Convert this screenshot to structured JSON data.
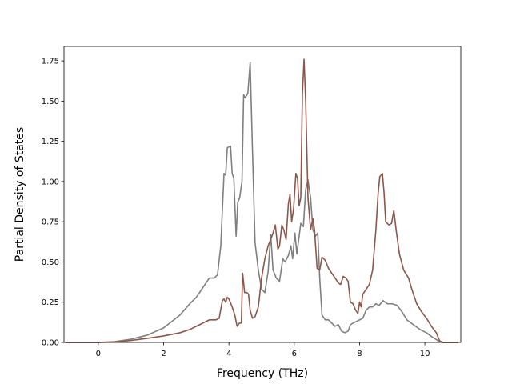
{
  "chart_data": {
    "type": "line",
    "title": "",
    "xlabel": "Frequency (THz)",
    "ylabel": "Partial Density of States",
    "xlim": [
      -1.05,
      11.1
    ],
    "ylim": [
      0,
      1.84
    ],
    "xticks": [
      0,
      2,
      4,
      6,
      8,
      10
    ],
    "yticks": [
      0.0,
      0.25,
      0.5,
      0.75,
      1.0,
      1.25,
      1.5,
      1.75
    ],
    "ytick_labels": [
      "0.00",
      "0.25",
      "0.50",
      "0.75",
      "1.00",
      "1.25",
      "1.50",
      "1.75"
    ],
    "grid": false,
    "legend": "none",
    "series": [
      {
        "color": "#7f7f7f",
        "points": [
          [
            -1.0,
            0
          ],
          [
            0,
            0
          ],
          [
            0.5,
            0.005
          ],
          [
            1.0,
            0.02
          ],
          [
            1.5,
            0.045
          ],
          [
            2.0,
            0.09
          ],
          [
            2.5,
            0.17
          ],
          [
            2.8,
            0.24
          ],
          [
            3.0,
            0.28
          ],
          [
            3.2,
            0.34
          ],
          [
            3.3,
            0.37
          ],
          [
            3.4,
            0.4
          ],
          [
            3.55,
            0.4
          ],
          [
            3.65,
            0.42
          ],
          [
            3.75,
            0.6
          ],
          [
            3.85,
            1.05
          ],
          [
            3.9,
            1.04
          ],
          [
            3.95,
            1.21
          ],
          [
            4.05,
            1.22
          ],
          [
            4.1,
            1.05
          ],
          [
            4.15,
            1.02
          ],
          [
            4.22,
            0.66
          ],
          [
            4.27,
            0.87
          ],
          [
            4.33,
            0.9
          ],
          [
            4.4,
            1.0
          ],
          [
            4.45,
            1.54
          ],
          [
            4.5,
            1.52
          ],
          [
            4.58,
            1.55
          ],
          [
            4.65,
            1.74
          ],
          [
            4.72,
            1.2
          ],
          [
            4.8,
            0.62
          ],
          [
            4.9,
            0.45
          ],
          [
            5.0,
            0.33
          ],
          [
            5.1,
            0.31
          ],
          [
            5.2,
            0.44
          ],
          [
            5.28,
            0.67
          ],
          [
            5.35,
            0.45
          ],
          [
            5.45,
            0.4
          ],
          [
            5.55,
            0.38
          ],
          [
            5.65,
            0.52
          ],
          [
            5.72,
            0.5
          ],
          [
            5.82,
            0.54
          ],
          [
            5.9,
            0.6
          ],
          [
            5.95,
            0.52
          ],
          [
            6.02,
            0.68
          ],
          [
            6.08,
            0.55
          ],
          [
            6.15,
            0.66
          ],
          [
            6.2,
            0.74
          ],
          [
            6.28,
            0.72
          ],
          [
            6.35,
            0.95
          ],
          [
            6.42,
            1.01
          ],
          [
            6.5,
            0.9
          ],
          [
            6.57,
            0.7
          ],
          [
            6.65,
            0.66
          ],
          [
            6.72,
            0.68
          ],
          [
            6.78,
            0.4
          ],
          [
            6.85,
            0.17
          ],
          [
            6.95,
            0.14
          ],
          [
            7.05,
            0.14
          ],
          [
            7.15,
            0.12
          ],
          [
            7.25,
            0.1
          ],
          [
            7.35,
            0.11
          ],
          [
            7.45,
            0.07
          ],
          [
            7.55,
            0.06
          ],
          [
            7.65,
            0.07
          ],
          [
            7.72,
            0.11
          ],
          [
            7.8,
            0.12
          ],
          [
            7.9,
            0.13
          ],
          [
            8.0,
            0.14
          ],
          [
            8.1,
            0.15
          ],
          [
            8.2,
            0.2
          ],
          [
            8.3,
            0.22
          ],
          [
            8.4,
            0.22
          ],
          [
            8.5,
            0.24
          ],
          [
            8.6,
            0.23
          ],
          [
            8.72,
            0.26
          ],
          [
            8.85,
            0.24
          ],
          [
            9.0,
            0.24
          ],
          [
            9.15,
            0.23
          ],
          [
            9.3,
            0.19
          ],
          [
            9.45,
            0.14
          ],
          [
            9.65,
            0.11
          ],
          [
            9.85,
            0.08
          ],
          [
            10.05,
            0.06
          ],
          [
            10.25,
            0.03
          ],
          [
            10.45,
            0.005
          ],
          [
            10.55,
            0
          ],
          [
            11.0,
            0
          ]
        ]
      },
      {
        "color": "#8c564b",
        "points": [
          [
            -1.0,
            0
          ],
          [
            0,
            0
          ],
          [
            0.5,
            0.003
          ],
          [
            1.0,
            0.012
          ],
          [
            1.5,
            0.025
          ],
          [
            2.0,
            0.04
          ],
          [
            2.5,
            0.06
          ],
          [
            2.8,
            0.08
          ],
          [
            3.0,
            0.1
          ],
          [
            3.2,
            0.12
          ],
          [
            3.4,
            0.14
          ],
          [
            3.6,
            0.14
          ],
          [
            3.7,
            0.15
          ],
          [
            3.8,
            0.26
          ],
          [
            3.85,
            0.27
          ],
          [
            3.9,
            0.25
          ],
          [
            3.95,
            0.28
          ],
          [
            4.0,
            0.27
          ],
          [
            4.1,
            0.22
          ],
          [
            4.18,
            0.17
          ],
          [
            4.25,
            0.1
          ],
          [
            4.32,
            0.12
          ],
          [
            4.38,
            0.12
          ],
          [
            4.42,
            0.43
          ],
          [
            4.48,
            0.31
          ],
          [
            4.55,
            0.31
          ],
          [
            4.6,
            0.3
          ],
          [
            4.65,
            0.2
          ],
          [
            4.72,
            0.15
          ],
          [
            4.8,
            0.16
          ],
          [
            4.9,
            0.22
          ],
          [
            5.0,
            0.4
          ],
          [
            5.1,
            0.52
          ],
          [
            5.2,
            0.6
          ],
          [
            5.28,
            0.64
          ],
          [
            5.35,
            0.68
          ],
          [
            5.42,
            0.73
          ],
          [
            5.5,
            0.58
          ],
          [
            5.55,
            0.6
          ],
          [
            5.62,
            0.73
          ],
          [
            5.68,
            0.7
          ],
          [
            5.75,
            0.64
          ],
          [
            5.82,
            0.86
          ],
          [
            5.87,
            0.92
          ],
          [
            5.92,
            0.75
          ],
          [
            5.98,
            0.83
          ],
          [
            6.05,
            1.05
          ],
          [
            6.1,
            1.02
          ],
          [
            6.15,
            0.85
          ],
          [
            6.2,
            0.9
          ],
          [
            6.25,
            1.55
          ],
          [
            6.3,
            1.76
          ],
          [
            6.35,
            1.5
          ],
          [
            6.42,
            0.9
          ],
          [
            6.5,
            0.7
          ],
          [
            6.57,
            0.77
          ],
          [
            6.62,
            0.7
          ],
          [
            6.7,
            0.46
          ],
          [
            6.78,
            0.45
          ],
          [
            6.85,
            0.53
          ],
          [
            6.95,
            0.51
          ],
          [
            7.05,
            0.46
          ],
          [
            7.15,
            0.43
          ],
          [
            7.25,
            0.4
          ],
          [
            7.35,
            0.37
          ],
          [
            7.42,
            0.36
          ],
          [
            7.5,
            0.41
          ],
          [
            7.58,
            0.4
          ],
          [
            7.65,
            0.38
          ],
          [
            7.72,
            0.25
          ],
          [
            7.8,
            0.24
          ],
          [
            7.88,
            0.2
          ],
          [
            7.95,
            0.18
          ],
          [
            8.0,
            0.25
          ],
          [
            8.05,
            0.22
          ],
          [
            8.1,
            0.3
          ],
          [
            8.2,
            0.33
          ],
          [
            8.3,
            0.36
          ],
          [
            8.4,
            0.45
          ],
          [
            8.5,
            0.7
          ],
          [
            8.57,
            0.93
          ],
          [
            8.62,
            1.03
          ],
          [
            8.7,
            1.05
          ],
          [
            8.75,
            0.93
          ],
          [
            8.8,
            0.75
          ],
          [
            8.9,
            0.73
          ],
          [
            8.98,
            0.74
          ],
          [
            9.05,
            0.82
          ],
          [
            9.12,
            0.7
          ],
          [
            9.22,
            0.55
          ],
          [
            9.35,
            0.45
          ],
          [
            9.5,
            0.4
          ],
          [
            9.6,
            0.33
          ],
          [
            9.75,
            0.24
          ],
          [
            9.9,
            0.19
          ],
          [
            10.05,
            0.15
          ],
          [
            10.2,
            0.1
          ],
          [
            10.35,
            0.06
          ],
          [
            10.45,
            0.01
          ],
          [
            10.55,
            0
          ],
          [
            11.0,
            0
          ]
        ]
      }
    ]
  }
}
